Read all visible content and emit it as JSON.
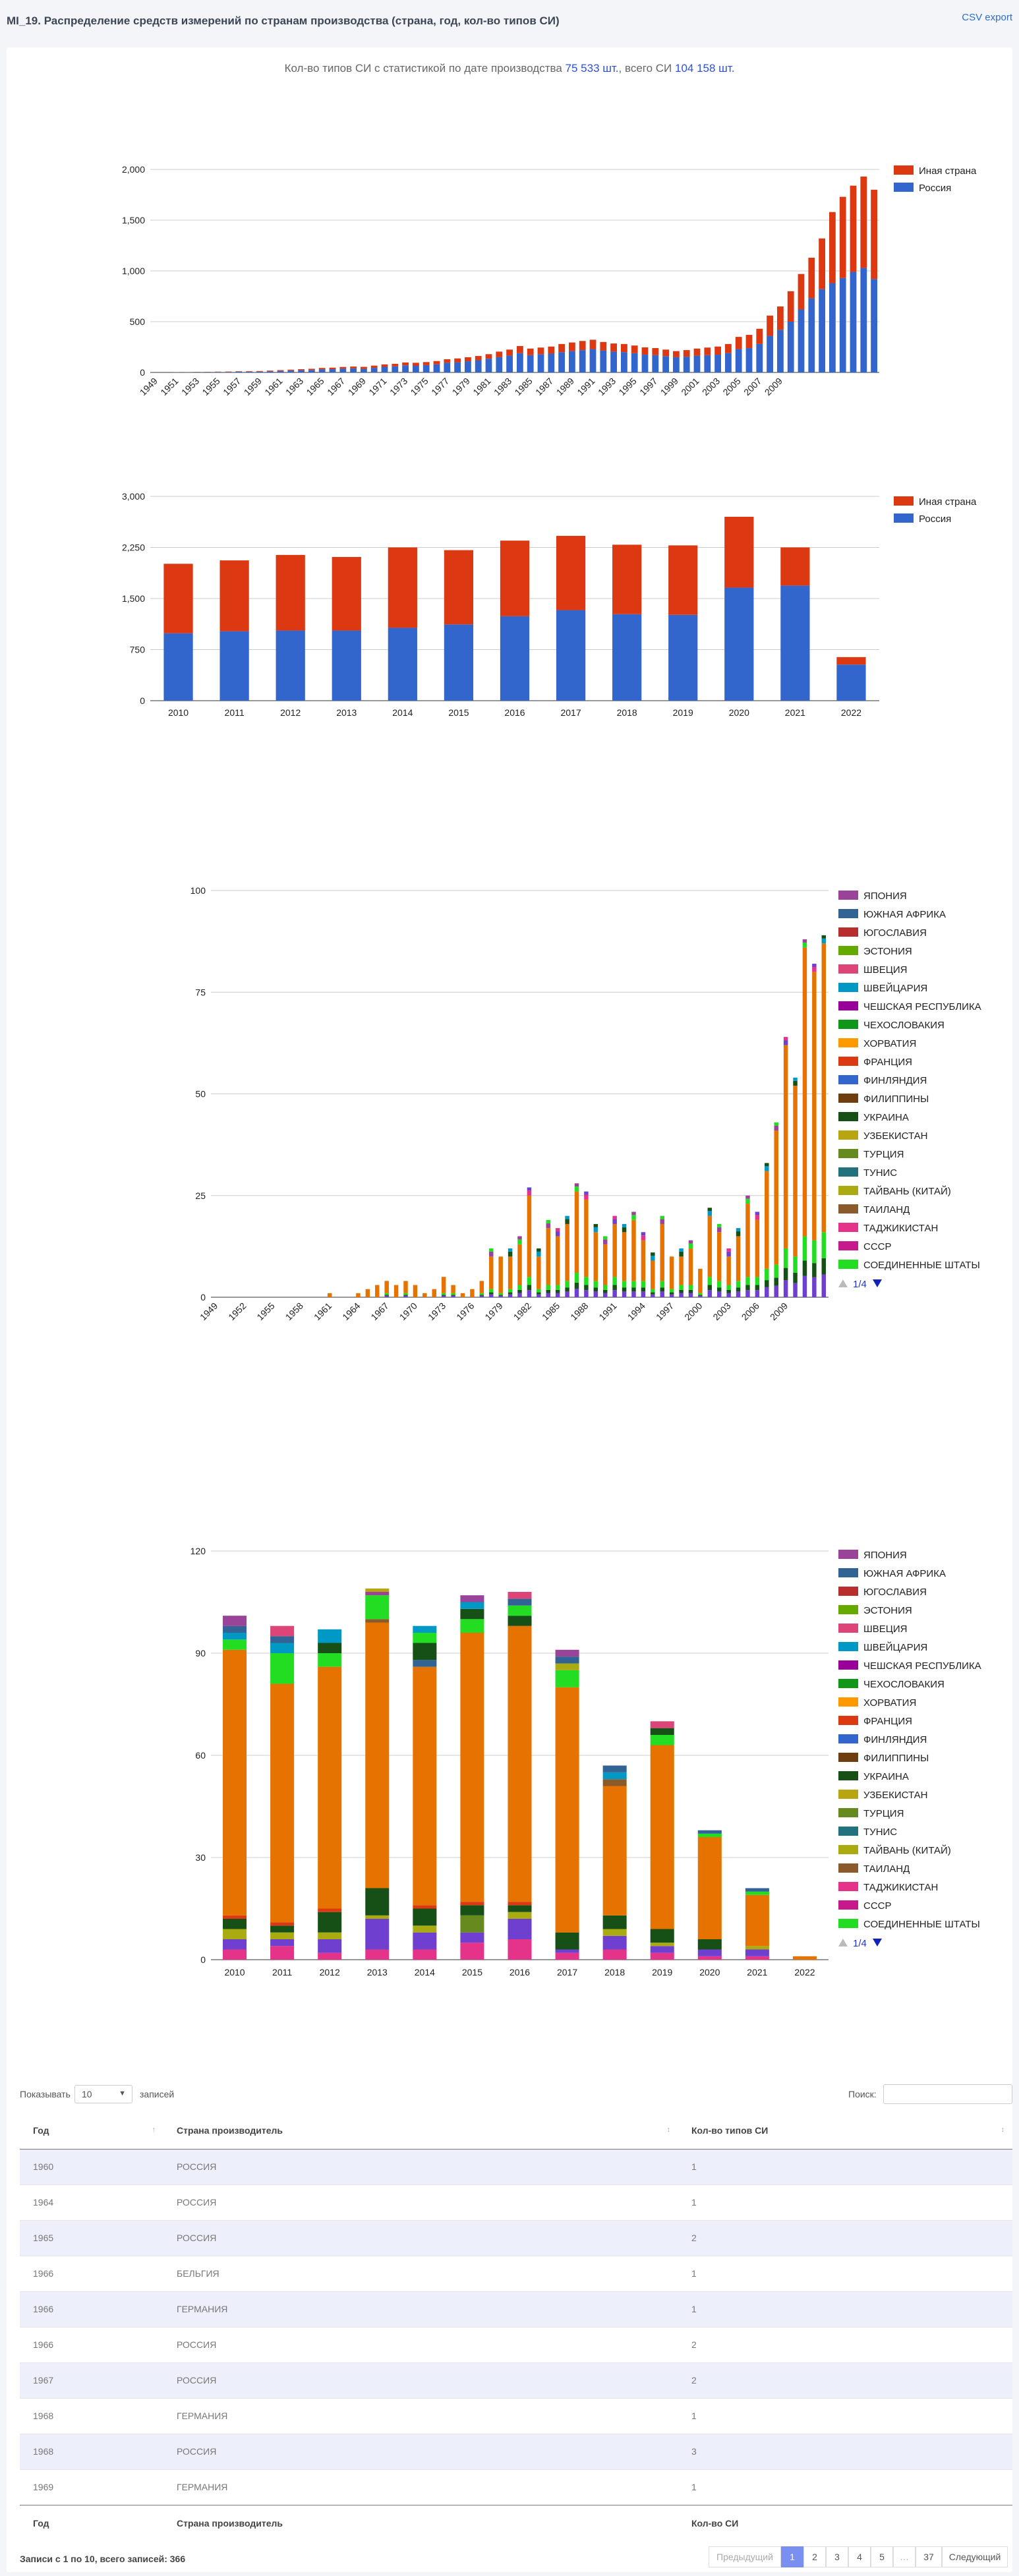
{
  "page": {
    "title": "MI_19. Распределение средств измерений по странам производства (страна, год, кол-во типов СИ)",
    "csv_export": "CSV export"
  },
  "summary": {
    "prefix": "Кол-во типов СИ с статистикой по дате производства ",
    "with_date": "75 533 шт.",
    "middle": ", всего СИ ",
    "total": "104 158 шт."
  },
  "colors": {
    "russia": "#3366cc",
    "other": "#dc3912"
  },
  "chart_data": [
    {
      "type": "bar",
      "stacked": true,
      "x_start": 1949,
      "categories_step": 2,
      "tick_labels": [
        "1949",
        "1951",
        "1953",
        "1955",
        "1957",
        "1959",
        "1961",
        "1963",
        "1965",
        "1967",
        "1969",
        "1971",
        "1973",
        "1975",
        "1977",
        "1979",
        "1981",
        "1983",
        "1985",
        "1987",
        "1989",
        "1991",
        "1993",
        "1995",
        "1997",
        "1999",
        "2001",
        "2003",
        "2005",
        "2007",
        "2009"
      ],
      "series": [
        {
          "name": "Россия",
          "values": [
            0,
            0,
            2,
            1,
            3,
            4,
            5,
            5,
            8,
            7,
            8,
            12,
            15,
            18,
            22,
            24,
            30,
            32,
            38,
            40,
            35,
            45,
            55,
            60,
            70,
            65,
            72,
            80,
            95,
            100,
            110,
            120,
            135,
            150,
            165,
            190,
            170,
            180,
            185,
            200,
            210,
            220,
            230,
            215,
            205,
            200,
            190,
            175,
            170,
            160,
            150,
            155,
            165,
            170,
            175,
            190,
            230,
            240,
            280,
            360,
            420,
            500,
            620,
            730,
            820,
            880,
            930,
            990,
            1030,
            920
          ]
        },
        {
          "name": "Иная страна",
          "values": [
            0,
            0,
            1,
            1,
            2,
            2,
            3,
            4,
            4,
            5,
            6,
            6,
            8,
            9,
            10,
            12,
            14,
            15,
            16,
            18,
            20,
            22,
            24,
            25,
            28,
            30,
            30,
            32,
            35,
            38,
            40,
            42,
            45,
            55,
            60,
            70,
            65,
            65,
            70,
            80,
            85,
            90,
            92,
            85,
            80,
            80,
            75,
            72,
            70,
            65,
            60,
            65,
            70,
            75,
            80,
            90,
            120,
            130,
            150,
            200,
            230,
            300,
            350,
            400,
            500,
            700,
            800,
            850,
            900,
            880
          ]
        }
      ],
      "legend": [
        "Иная страна",
        "Россия"
      ],
      "ylim": [
        0,
        2000
      ],
      "yticks": [
        0,
        500,
        1000,
        1500,
        2000
      ]
    },
    {
      "type": "bar",
      "stacked": true,
      "categories": [
        "2010",
        "2011",
        "2012",
        "2013",
        "2014",
        "2015",
        "2016",
        "2017",
        "2018",
        "2019",
        "2020",
        "2021",
        "2022"
      ],
      "series": [
        {
          "name": "Россия",
          "values": [
            990,
            1020,
            1030,
            1030,
            1070,
            1120,
            1240,
            1330,
            1270,
            1260,
            1660,
            1690,
            530
          ]
        },
        {
          "name": "Иная страна",
          "values": [
            1020,
            1040,
            1110,
            1080,
            1180,
            1090,
            1110,
            1090,
            1020,
            1020,
            1040,
            560,
            110
          ]
        }
      ],
      "legend": [
        "Иная страна",
        "Россия"
      ],
      "ylim": [
        0,
        3000
      ],
      "yticks": [
        0,
        750,
        1500,
        2250,
        3000
      ]
    },
    {
      "type": "bar",
      "stacked": true,
      "x_start": 1949,
      "tick_labels": [
        "1949",
        "1952",
        "1955",
        "1958",
        "1961",
        "1964",
        "1967",
        "1970",
        "1973",
        "1976",
        "1979",
        "1982",
        "1985",
        "1988",
        "1991",
        "1994",
        "1997",
        "2000",
        "2003",
        "2006",
        "2009"
      ],
      "totals": [
        0,
        0,
        0,
        0,
        0,
        0,
        0,
        0,
        0,
        0,
        0,
        0,
        1,
        0,
        0,
        1,
        2,
        3,
        4,
        3,
        4,
        3,
        1,
        2,
        5,
        3,
        1,
        2,
        4,
        12,
        10,
        12,
        15,
        27,
        12,
        19,
        17,
        20,
        28,
        26,
        18,
        15,
        20,
        18,
        21,
        16,
        11,
        20,
        10,
        12,
        14,
        7,
        22,
        18,
        12,
        17,
        25,
        21,
        33,
        43,
        64,
        54,
        88,
        82,
        89
      ],
      "lower_totals": [
        0,
        0,
        0,
        0,
        0,
        0,
        0,
        0,
        0,
        0,
        0,
        0,
        0,
        0,
        0,
        0,
        0,
        0,
        1,
        0,
        1,
        0,
        0,
        0,
        1,
        1,
        0,
        0,
        1,
        2,
        1,
        2,
        3,
        5,
        2,
        3,
        3,
        4,
        6,
        5,
        4,
        3,
        5,
        4,
        4,
        4,
        2,
        4,
        2,
        3,
        3,
        1,
        5,
        4,
        3,
        4,
        5,
        5,
        7,
        8,
        12,
        10,
        15,
        14,
        16
      ],
      "legend": [
        "ЯПОНИЯ",
        "ЮЖНАЯ АФРИКА",
        "ЮГОСЛАВИЯ",
        "ЭСТОНИЯ",
        "ШВЕЦИЯ",
        "ШВЕЙЦАРИЯ",
        "ЧЕШСКАЯ РЕСПУБЛИКА",
        "ЧЕХОСЛОВАКИЯ",
        "ХОРВАТИЯ",
        "ФРАНЦИЯ",
        "ФИНЛЯНДИЯ",
        "ФИЛИППИНЫ",
        "УКРАИНА",
        "УЗБЕКИСТАН",
        "ТУРЦИЯ",
        "ТУНИС",
        "ТАЙВАНЬ (КИТАЙ)",
        "ТАИЛАНД",
        "ТАДЖИКИСТАН",
        "СССР",
        "СОЕДИНЕННЫЕ ШТАТЫ"
      ],
      "legend_colors": [
        "#994499",
        "#316395",
        "#b82e2e",
        "#66aa00",
        "#dd4477",
        "#0099c6",
        "#990099",
        "#109618",
        "#ff9900",
        "#dc3912",
        "#3366cc",
        "#6e3e0e",
        "#165016",
        "#b8a512",
        "#668a1e",
        "#22727d",
        "#aaaa11",
        "#8b5a2b",
        "#e6338a",
        "#c61a8c",
        "#22dd22"
      ],
      "main_color": "#e67300",
      "ylim": [
        0,
        100
      ],
      "yticks": [
        0,
        25,
        50,
        75,
        100
      ],
      "pager": "1/4"
    },
    {
      "type": "bar",
      "stacked": true,
      "categories": [
        "2010",
        "2011",
        "2012",
        "2013",
        "2014",
        "2015",
        "2016",
        "2017",
        "2018",
        "2019",
        "2020",
        "2021",
        "2022"
      ],
      "segments": [
        [
          [
            3,
            "#e6338a"
          ],
          [
            3,
            "#6f3fcf"
          ],
          [
            3,
            "#aaaa11"
          ],
          [
            3,
            "#165016"
          ],
          [
            1,
            "#dc3912"
          ],
          [
            78,
            "#e67300"
          ],
          [
            3,
            "#22dd22"
          ],
          [
            2,
            "#0099c6"
          ],
          [
            2,
            "#316395"
          ],
          [
            3,
            "#994499"
          ]
        ],
        [
          [
            4,
            "#e6338a"
          ],
          [
            2,
            "#6f3fcf"
          ],
          [
            2,
            "#aaaa11"
          ],
          [
            2,
            "#165016"
          ],
          [
            1,
            "#dc3912"
          ],
          [
            70,
            "#e67300"
          ],
          [
            9,
            "#22dd22"
          ],
          [
            3,
            "#0099c6"
          ],
          [
            2,
            "#316395"
          ],
          [
            3,
            "#dd4477"
          ]
        ],
        [
          [
            2,
            "#e6338a"
          ],
          [
            4,
            "#6f3fcf"
          ],
          [
            2,
            "#aaaa11"
          ],
          [
            6,
            "#165016"
          ],
          [
            1,
            "#dc3912"
          ],
          [
            71,
            "#e67300"
          ],
          [
            4,
            "#22dd22"
          ],
          [
            3,
            "#165016"
          ],
          [
            4,
            "#0099c6"
          ]
        ],
        [
          [
            3,
            "#e6338a"
          ],
          [
            9,
            "#6f3fcf"
          ],
          [
            1,
            "#aaaa11"
          ],
          [
            8,
            "#165016"
          ],
          [
            78,
            "#e67300"
          ],
          [
            1,
            "#8b5a2b"
          ],
          [
            7,
            "#22dd22"
          ],
          [
            1,
            "#994499"
          ],
          [
            1,
            "#b8a512"
          ]
        ],
        [
          [
            3,
            "#e6338a"
          ],
          [
            5,
            "#6f3fcf"
          ],
          [
            2,
            "#aaaa11"
          ],
          [
            5,
            "#165016"
          ],
          [
            1,
            "#dc3912"
          ],
          [
            70,
            "#e67300"
          ],
          [
            2,
            "#316395"
          ],
          [
            5,
            "#165016"
          ],
          [
            3,
            "#22dd22"
          ],
          [
            2,
            "#0099c6"
          ]
        ],
        [
          [
            5,
            "#e6338a"
          ],
          [
            3,
            "#6f3fcf"
          ],
          [
            5,
            "#668a1e"
          ],
          [
            3,
            "#165016"
          ],
          [
            1,
            "#dc3912"
          ],
          [
            79,
            "#e67300"
          ],
          [
            4,
            "#22dd22"
          ],
          [
            3,
            "#165016"
          ],
          [
            2,
            "#0099c6"
          ],
          [
            2,
            "#994499"
          ]
        ],
        [
          [
            6,
            "#e6338a"
          ],
          [
            6,
            "#6f3fcf"
          ],
          [
            2,
            "#aaaa11"
          ],
          [
            2,
            "#165016"
          ],
          [
            1,
            "#dc3912"
          ],
          [
            81,
            "#e67300"
          ],
          [
            3,
            "#165016"
          ],
          [
            3,
            "#22dd22"
          ],
          [
            2,
            "#316395"
          ],
          [
            2,
            "#dd4477"
          ]
        ],
        [
          [
            2,
            "#e6338a"
          ],
          [
            1,
            "#6f3fcf"
          ],
          [
            5,
            "#165016"
          ],
          [
            72,
            "#e67300"
          ],
          [
            5,
            "#22dd22"
          ],
          [
            2,
            "#aaaa11"
          ],
          [
            2,
            "#316395"
          ],
          [
            2,
            "#994499"
          ]
        ],
        [
          [
            3,
            "#e6338a"
          ],
          [
            4,
            "#6f3fcf"
          ],
          [
            2,
            "#aaaa11"
          ],
          [
            4,
            "#165016"
          ],
          [
            38,
            "#e67300"
          ],
          [
            2,
            "#8b5a2b"
          ],
          [
            2,
            "#0099c6"
          ],
          [
            2,
            "#316395"
          ]
        ],
        [
          [
            2,
            "#e6338a"
          ],
          [
            2,
            "#6f3fcf"
          ],
          [
            1,
            "#aaaa11"
          ],
          [
            4,
            "#165016"
          ],
          [
            54,
            "#e67300"
          ],
          [
            3,
            "#22dd22"
          ],
          [
            2,
            "#165016"
          ],
          [
            2,
            "#dd4477"
          ]
        ],
        [
          [
            1,
            "#e6338a"
          ],
          [
            2,
            "#6f3fcf"
          ],
          [
            3,
            "#165016"
          ],
          [
            30,
            "#e67300"
          ],
          [
            1,
            "#22dd22"
          ],
          [
            1,
            "#316395"
          ]
        ],
        [
          [
            1,
            "#e6338a"
          ],
          [
            2,
            "#6f3fcf"
          ],
          [
            1,
            "#aaaa11"
          ],
          [
            15,
            "#e67300"
          ],
          [
            1,
            "#22dd22"
          ],
          [
            1,
            "#316395"
          ]
        ],
        [
          [
            1,
            "#e67300"
          ]
        ]
      ],
      "legend": [
        "ЯПОНИЯ",
        "ЮЖНАЯ АФРИКА",
        "ЮГОСЛАВИЯ",
        "ЭСТОНИЯ",
        "ШВЕЦИЯ",
        "ШВЕЙЦАРИЯ",
        "ЧЕШСКАЯ РЕСПУБЛИКА",
        "ЧЕХОСЛОВАКИЯ",
        "ХОРВАТИЯ",
        "ФРАНЦИЯ",
        "ФИНЛЯНДИЯ",
        "ФИЛИППИНЫ",
        "УКРАИНА",
        "УЗБЕКИСТАН",
        "ТУРЦИЯ",
        "ТУНИС",
        "ТАЙВАНЬ (КИТАЙ)",
        "ТАИЛАНД",
        "ТАДЖИКИСТАН",
        "СССР",
        "СОЕДИНЕННЫЕ ШТАТЫ"
      ],
      "legend_colors": [
        "#994499",
        "#316395",
        "#b82e2e",
        "#66aa00",
        "#dd4477",
        "#0099c6",
        "#990099",
        "#109618",
        "#ff9900",
        "#dc3912",
        "#3366cc",
        "#6e3e0e",
        "#165016",
        "#b8a512",
        "#668a1e",
        "#22727d",
        "#aaaa11",
        "#8b5a2b",
        "#e6338a",
        "#c61a8c",
        "#22dd22"
      ],
      "ylim": [
        0,
        120
      ],
      "yticks": [
        0,
        30,
        60,
        90,
        120
      ],
      "pager": "1/4"
    }
  ],
  "table": {
    "show_label": "Показывать",
    "length_value": "10",
    "entries_label": "записей",
    "search_label": "Поиск:",
    "columns": [
      "Год",
      "Страна производитель",
      "Кол-во типов СИ"
    ],
    "footer_columns": [
      "Год",
      "Страна производитель",
      "Кол-во СИ"
    ],
    "rows": [
      [
        "1960",
        "РОССИЯ",
        "1"
      ],
      [
        "1964",
        "РОССИЯ",
        "1"
      ],
      [
        "1965",
        "РОССИЯ",
        "2"
      ],
      [
        "1966",
        "БЕЛЬГИЯ",
        "1"
      ],
      [
        "1966",
        "ГЕРМАНИЯ",
        "1"
      ],
      [
        "1966",
        "РОССИЯ",
        "2"
      ],
      [
        "1967",
        "РОССИЯ",
        "2"
      ],
      [
        "1968",
        "ГЕРМАНИЯ",
        "1"
      ],
      [
        "1968",
        "РОССИЯ",
        "3"
      ],
      [
        "1969",
        "ГЕРМАНИЯ",
        "1"
      ]
    ],
    "info": "Записи с 1 по 10, всего записей: 366",
    "pagination": {
      "previous": "Предыдущий",
      "pages": [
        "1",
        "2",
        "3",
        "4",
        "5",
        "…",
        "37"
      ],
      "next": "Следующий",
      "active": "1"
    }
  }
}
